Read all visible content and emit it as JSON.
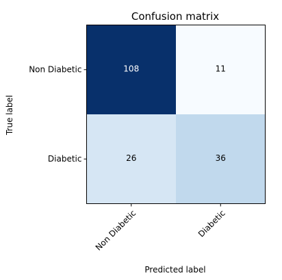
{
  "chart_data": {
    "type": "heatmap",
    "title": "Confusion matrix",
    "xlabel": "Predicted label",
    "ylabel": "True label",
    "x_categories": [
      "Non Diabetic",
      "Diabetic"
    ],
    "y_categories": [
      "Non Diabetic",
      "Diabetic"
    ],
    "values": [
      [
        108,
        11
      ],
      [
        26,
        36
      ]
    ],
    "colormap": "Blues",
    "grid": false
  },
  "colors": {
    "cells": [
      [
        "#08306b",
        "#f7fbff"
      ],
      [
        "#d6e6f4",
        "#c1d9ed"
      ]
    ],
    "text_light": "#ffffff",
    "text_dark": "#000000"
  }
}
